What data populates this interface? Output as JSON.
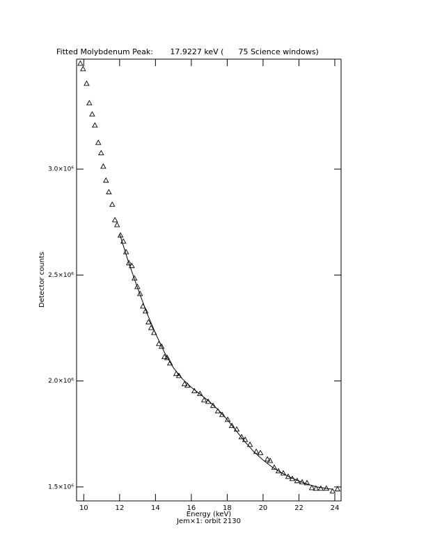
{
  "chart_data": {
    "type": "scatter",
    "title": "Fitted Molybdenum Peak:       17.9227 keV (      75 Science windows)",
    "x_label": "Energy (keV)",
    "subtitle": "Jem×1: orbit 2130",
    "y_label": "Detector counts",
    "xlim": [
      9.6,
      24.35
    ],
    "ylim": [
      1434000,
      3519000
    ],
    "xticks": [
      10,
      12,
      14,
      16,
      18,
      20,
      22,
      24
    ],
    "yticks": [
      {
        "value": 1500000,
        "label": "1.5×10⁶"
      },
      {
        "value": 2000000,
        "label": "2.0×10⁶"
      },
      {
        "value": 2500000,
        "label": "2.5×10⁶"
      },
      {
        "value": 3000000,
        "label": "3.0×10⁶"
      }
    ],
    "color": "#000000",
    "series": [
      {
        "mode": "markers",
        "marker": "triangle",
        "color": "#000000",
        "x": [
          9.81,
          9.96,
          10.16,
          10.31,
          10.47,
          10.62,
          10.81,
          10.97,
          11.09,
          11.24,
          11.4,
          11.59,
          11.74,
          11.86,
          12.05,
          12.21,
          12.36,
          12.52,
          12.68,
          12.83,
          12.99,
          13.14,
          13.3,
          13.45,
          13.61,
          13.76,
          13.92,
          14.19,
          14.34,
          14.5,
          14.65,
          14.81,
          15.16,
          15.31,
          15.62,
          15.78,
          16.17,
          16.48,
          16.71,
          16.94,
          17.21,
          17.48,
          17.72,
          18.03,
          18.26,
          18.53,
          18.8,
          19.0,
          19.27,
          19.62,
          19.85,
          20.24,
          20.39,
          20.62,
          20.86,
          21.13,
          21.4,
          21.63,
          21.9,
          22.18,
          22.45,
          22.72,
          22.95,
          23.22,
          23.53,
          23.88,
          24.15
        ],
        "values": [
          3499000,
          3473000,
          3404000,
          3312000,
          3259000,
          3207000,
          3125000,
          3076000,
          3013000,
          2947000,
          2892000,
          2833000,
          2760000,
          2737000,
          2688000,
          2659000,
          2609000,
          2557000,
          2544000,
          2485000,
          2445000,
          2412000,
          2353000,
          2330000,
          2278000,
          2251000,
          2228000,
          2176000,
          2163000,
          2114000,
          2110000,
          2084000,
          2035000,
          2025000,
          1986000,
          1979000,
          1953000,
          1940000,
          1910000,
          1903000,
          1884000,
          1858000,
          1841000,
          1818000,
          1789000,
          1772000,
          1736000,
          1723000,
          1700000,
          1667000,
          1661000,
          1631000,
          1624000,
          1592000,
          1575000,
          1565000,
          1549000,
          1539000,
          1529000,
          1523000,
          1519000,
          1496000,
          1493000,
          1493000,
          1493000,
          1480000,
          1490000
        ]
      },
      {
        "mode": "line",
        "color": "#000000",
        "x": [
          12.0,
          12.5,
          13.0,
          13.5,
          14.0,
          14.5,
          15.0,
          15.5,
          16.0,
          16.5,
          17.0,
          17.5,
          18.0,
          18.5,
          19.0,
          19.5,
          20.0,
          20.5,
          21.0,
          21.5,
          22.0,
          22.5,
          23.0,
          23.5,
          23.9
        ],
        "values": [
          2695000,
          2560000,
          2440000,
          2325000,
          2225000,
          2135000,
          2062000,
          2010000,
          1970000,
          1937000,
          1903000,
          1864000,
          1818000,
          1765000,
          1712000,
          1665000,
          1627000,
          1594000,
          1568000,
          1546000,
          1528000,
          1512000,
          1500000,
          1493000,
          1489000
        ]
      }
    ]
  }
}
